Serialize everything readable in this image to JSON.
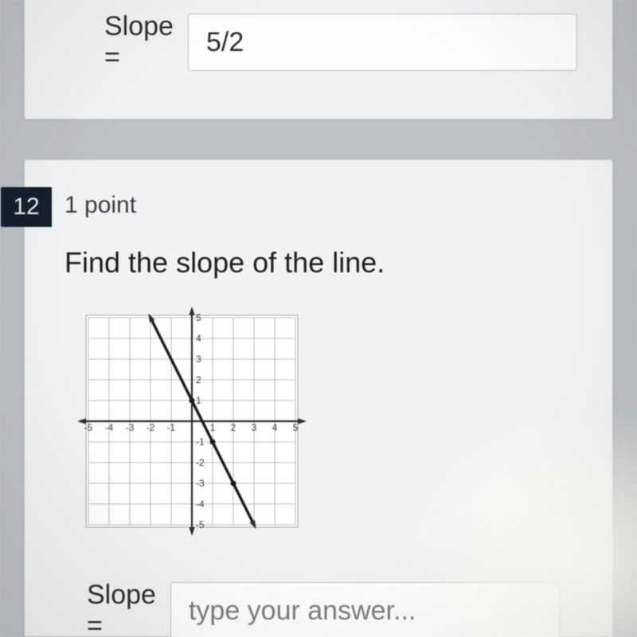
{
  "top": {
    "slope_label": "Slope =",
    "slope_value": "5/2"
  },
  "question": {
    "number": "12",
    "points": "1 point",
    "prompt": "Find the slope of the line.",
    "answer_label": "Slope =",
    "answer_placeholder": "type your answer..."
  },
  "graph": {
    "type": "line",
    "background_color": "#ffffff",
    "grid_color": "#a6a8aa",
    "axis_color": "#2a2c2f",
    "tick_fontsize": 12,
    "tick_color": "#3a3c3f",
    "xlim": [
      -5,
      5
    ],
    "ylim": [
      -5,
      5
    ],
    "tick_step": 1,
    "x_tick_labels": [
      -5,
      -4,
      -3,
      -2,
      -1,
      1,
      2,
      3,
      4,
      5
    ],
    "y_tick_labels": [
      -5,
      -4,
      -3,
      -2,
      -1,
      1,
      2,
      3,
      4,
      5
    ],
    "line": {
      "color": "#1a1c1e",
      "width": 3.5,
      "points_through": [
        [
          -2,
          5
        ],
        [
          3,
          -5
        ]
      ],
      "marked_points": [
        [
          0,
          1
        ],
        [
          1,
          -1
        ],
        [
          2,
          -3
        ]
      ],
      "marker_radius": 3.5,
      "marker_color": "#1a1c1e",
      "start_arrow": true,
      "end_arrow": true
    },
    "axis_arrows": true
  },
  "colors": {
    "page_bg": "#bfc2c5",
    "card_bg": "#f1f2f3",
    "card_border": "#c9cbce",
    "qnum_bg": "#14202d",
    "qnum_fg": "#e9edf1",
    "label_fg": "#2b2d31",
    "input_border": "#bfc2c5",
    "input_bg": "#fdfdfd"
  }
}
